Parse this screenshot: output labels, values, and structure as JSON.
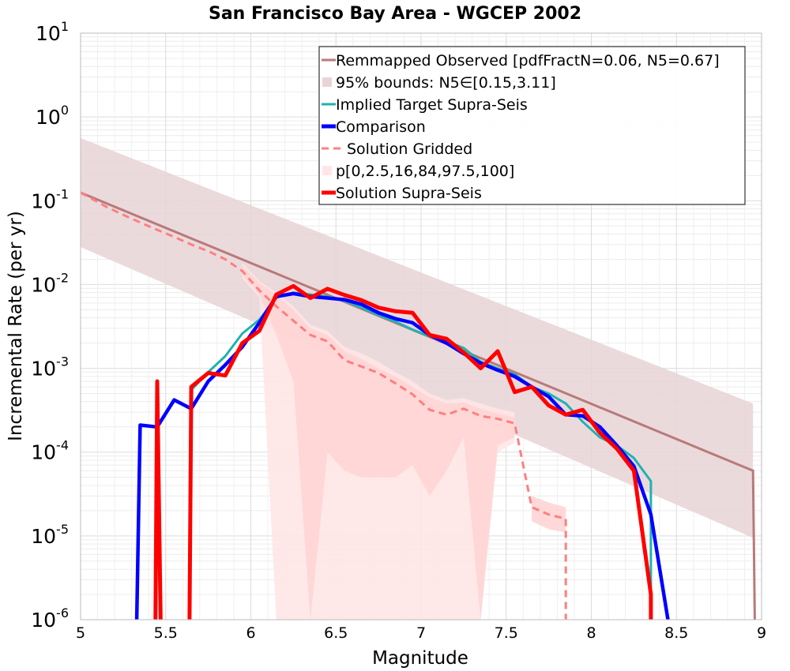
{
  "chart_data": {
    "type": "line",
    "title": "San Francisco Bay Area - WGCEP 2002",
    "xlabel": "Magnitude",
    "ylabel": "Incremental Rate (per yr)",
    "xlim": [
      5,
      9
    ],
    "ylim": [
      1e-06,
      10
    ],
    "yscale": "log",
    "grid": true,
    "legend_position": "top-right",
    "xticks": [
      "5",
      "5.5",
      "6",
      "6.5",
      "7",
      "7.5",
      "8",
      "8.5",
      "9"
    ],
    "ytick_exponents": [
      "1",
      "0",
      "-1",
      "-2",
      "-3",
      "-4",
      "-5",
      "-6"
    ],
    "legend": [
      "Remmapped Observed [pdfFractN=0.06, N5=0.67]",
      "95% bounds: N5∈[0.15,3.11]",
      "Implied Target Supra-Seis",
      "Comparison",
      "Solution Gridded",
      "p[0,2.5,16,84,97.5,100]",
      "Solution Supra-Seis"
    ],
    "colors": {
      "remapped": "#b87a7a",
      "bounds": "#e8d4d6",
      "implied": "#20b2b0",
      "comparison": "#0000ff",
      "gridded": "#ff7f7f",
      "percentile_outer": "#ffe6e6",
      "percentile_inner": "#ffd0d0",
      "supra": "#ff0000"
    },
    "series": [
      {
        "id": "remapped",
        "x": [
          5.0,
          8.95,
          8.96
        ],
        "y": [
          0.125,
          6e-05,
          1e-06
        ]
      },
      {
        "id": "bounds",
        "x": [
          5.0,
          8.95
        ],
        "lower": [
          0.028,
          9.5e-06
        ],
        "upper": [
          0.56,
          0.00038
        ]
      },
      {
        "id": "implied",
        "x": [
          5.65,
          5.75,
          5.85,
          5.95,
          6.05,
          6.15,
          6.25,
          6.35,
          6.45,
          6.55,
          6.65,
          6.75,
          6.85,
          6.95,
          7.05,
          7.15,
          7.25,
          7.35,
          7.45,
          7.55,
          7.65,
          7.75,
          7.85,
          7.95,
          8.05,
          8.15,
          8.25,
          8.35,
          8.35
        ],
        "y": [
          0.00055,
          0.0009,
          0.0014,
          0.0026,
          0.0038,
          0.007,
          0.008,
          0.0076,
          0.0072,
          0.0064,
          0.0053,
          0.0043,
          0.0036,
          0.0029,
          0.0024,
          0.0021,
          0.00175,
          0.0012,
          0.001,
          0.00085,
          0.0006,
          0.0005,
          0.00038,
          0.00023,
          0.00015,
          0.00012,
          8.5e-05,
          4.5e-05,
          1e-06
        ]
      },
      {
        "id": "comparison",
        "x": [
          5.33,
          5.35,
          5.45,
          5.55,
          5.65,
          5.75,
          5.85,
          5.95,
          6.05,
          6.15,
          6.25,
          6.35,
          6.45,
          6.55,
          6.65,
          6.75,
          6.85,
          6.95,
          7.05,
          7.15,
          7.25,
          7.35,
          7.45,
          7.55,
          7.65,
          7.75,
          7.85,
          7.95,
          8.05,
          8.15,
          8.25,
          8.35,
          8.45
        ],
        "y": [
          1e-06,
          0.00021,
          0.0002,
          0.00042,
          0.00033,
          0.0007,
          0.0011,
          0.0018,
          0.0035,
          0.0072,
          0.0078,
          0.0072,
          0.0069,
          0.0066,
          0.0058,
          0.0046,
          0.0039,
          0.0035,
          0.0025,
          0.002,
          0.0015,
          0.00115,
          0.00095,
          0.0008,
          0.0006,
          0.00046,
          0.00028,
          0.00027,
          0.0002,
          0.00012,
          6.8e-05,
          1.8e-05,
          1e-06
        ]
      },
      {
        "id": "gridded",
        "x": [
          5.0,
          5.15,
          5.25,
          5.35,
          5.45,
          5.55,
          5.65,
          5.75,
          5.85,
          5.95,
          6.05,
          6.15,
          6.25,
          6.35,
          6.45,
          6.55,
          6.65,
          6.75,
          6.85,
          6.95,
          7.05,
          7.15,
          7.25,
          7.35,
          7.45,
          7.55,
          7.65,
          7.75,
          7.85,
          7.85
        ],
        "y": [
          0.125,
          0.085,
          0.068,
          0.055,
          0.045,
          0.037,
          0.03,
          0.025,
          0.02,
          0.0145,
          0.0085,
          0.0055,
          0.0037,
          0.0025,
          0.0021,
          0.00125,
          0.00105,
          0.00088,
          0.00066,
          0.00049,
          0.00032,
          0.00028,
          0.00033,
          0.00027,
          0.00025,
          0.00022,
          2.2e-05,
          1.8e-05,
          1.6e-05,
          1e-06
        ]
      },
      {
        "id": "percentile_outer",
        "x": [
          5.95,
          6.05,
          6.15,
          6.25,
          6.35,
          6.45,
          6.55,
          6.65,
          6.75,
          6.85,
          6.95,
          7.05,
          7.15,
          7.25,
          7.35,
          7.45,
          7.55
        ],
        "lower": [
          0.012,
          0.007,
          1e-06,
          1e-06,
          1e-06,
          1e-06,
          1e-06,
          1e-06,
          1e-06,
          1e-06,
          1e-06,
          1e-06,
          1e-06,
          1e-06,
          1e-06,
          0.0001,
          0.00013
        ],
        "upper": [
          0.018,
          0.011,
          0.008,
          0.0055,
          0.0033,
          0.0028,
          0.0018,
          0.0015,
          0.0012,
          0.0009,
          0.0007,
          0.0005,
          0.00042,
          0.00044,
          0.00038,
          0.00033,
          0.0003
        ]
      },
      {
        "id": "percentile_inner",
        "x": [
          5.95,
          6.05,
          6.15,
          6.25,
          6.35,
          6.45,
          6.55,
          6.65,
          6.75,
          6.85,
          6.95,
          7.05,
          7.15,
          7.25,
          7.35,
          7.45,
          7.55
        ],
        "lower": [
          0.013,
          0.0075,
          0.0025,
          0.0007,
          1e-06,
          0.0001,
          6e-05,
          5e-05,
          5e-05,
          5e-05,
          7e-05,
          3e-05,
          6e-05,
          0.00015,
          1e-06,
          0.00012,
          0.00015
        ],
        "upper": [
          0.017,
          0.0105,
          0.0075,
          0.005,
          0.003,
          0.0025,
          0.0016,
          0.0013,
          0.001,
          0.0008,
          0.0006,
          0.00045,
          0.00038,
          0.00039,
          0.00033,
          0.00029,
          0.00026
        ]
      },
      {
        "id": "gridded_tail_band",
        "x": [
          7.65,
          7.75,
          7.85
        ],
        "lower": [
          1.5e-05,
          1.2e-05,
          1.1e-05
        ],
        "upper": [
          3e-05,
          2.5e-05,
          2.2e-05
        ]
      },
      {
        "id": "supra",
        "segments": [
          {
            "x": [
              5.44,
              5.45,
              5.47
            ],
            "y": [
              1e-06,
              0.0007,
              1e-06
            ]
          },
          {
            "x": [
              5.64,
              5.65,
              5.75,
              5.85,
              5.95,
              6.05,
              6.15,
              6.25,
              6.35,
              6.45,
              6.55,
              6.65,
              6.75,
              6.85,
              6.95,
              7.05,
              7.15,
              7.25,
              7.35,
              7.45,
              7.55,
              7.65,
              7.75,
              7.85,
              7.95,
              8.05,
              8.15,
              8.25,
              8.35,
              8.35
            ],
            "y": [
              1e-06,
              0.0006,
              0.00088,
              0.00082,
              0.002,
              0.0028,
              0.0076,
              0.0096,
              0.0069,
              0.0089,
              0.0075,
              0.0065,
              0.0053,
              0.0048,
              0.0046,
              0.0025,
              0.00225,
              0.00155,
              0.001,
              0.0016,
              0.00052,
              0.0006,
              0.00036,
              0.00028,
              0.00032,
              0.00017,
              0.00011,
              6e-05,
              2e-06,
              1e-06
            ]
          }
        ]
      }
    ]
  }
}
